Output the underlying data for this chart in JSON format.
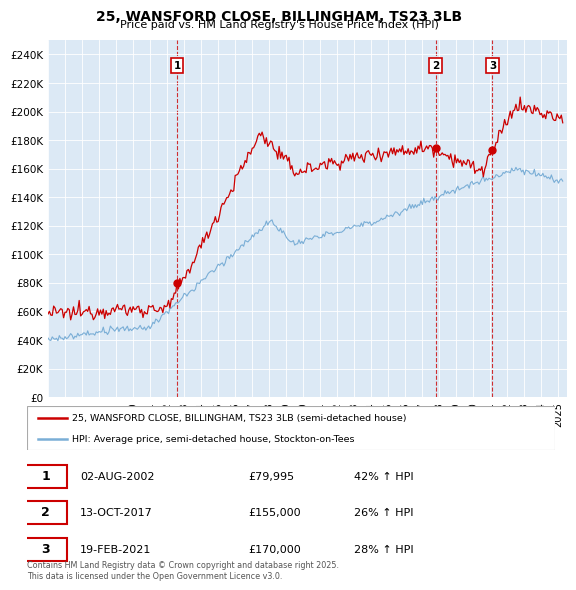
{
  "title_line1": "25, WANSFORD CLOSE, BILLINGHAM, TS23 3LB",
  "title_line2": "Price paid vs. HM Land Registry's House Price Index (HPI)",
  "sale_color": "#cc0000",
  "hpi_color": "#7aaed6",
  "background_color": "#ffffff",
  "plot_bg_color": "#dce9f5",
  "grid_color": "#ffffff",
  "sale_label": "25, WANSFORD CLOSE, BILLINGHAM, TS23 3LB (semi-detached house)",
  "hpi_label": "HPI: Average price, semi-detached house, Stockton-on-Tees",
  "xlim_start": 1995.0,
  "xlim_end": 2025.5,
  "ylim_min": 0,
  "ylim_max": 250000,
  "yticks": [
    0,
    20000,
    40000,
    60000,
    80000,
    100000,
    120000,
    140000,
    160000,
    180000,
    200000,
    220000,
    240000
  ],
  "ytick_labels": [
    "£0",
    "£20K",
    "£40K",
    "£60K",
    "£80K",
    "£100K",
    "£120K",
    "£140K",
    "£160K",
    "£180K",
    "£200K",
    "£220K",
    "£240K"
  ],
  "xticks": [
    1995,
    1996,
    1997,
    1998,
    1999,
    2000,
    2001,
    2002,
    2003,
    2004,
    2005,
    2006,
    2007,
    2008,
    2009,
    2010,
    2011,
    2012,
    2013,
    2014,
    2015,
    2016,
    2017,
    2018,
    2019,
    2020,
    2021,
    2022,
    2023,
    2024,
    2025
  ],
  "transactions": [
    {
      "num": 1,
      "date_str": "02-AUG-2002",
      "date_x": 2002.58,
      "price": 79995,
      "price_str": "£79,995",
      "pct": "42%",
      "dot_y": 79995
    },
    {
      "num": 2,
      "date_str": "13-OCT-2017",
      "date_x": 2017.78,
      "price": 155000,
      "price_str": "£155,000",
      "pct": "26%",
      "dot_y": 155000
    },
    {
      "num": 3,
      "date_str": "19-FEB-2021",
      "date_x": 2021.12,
      "price": 170000,
      "price_str": "£170,000",
      "pct": "28%",
      "dot_y": 170000
    }
  ],
  "footer_text": "Contains HM Land Registry data © Crown copyright and database right 2025.\nThis data is licensed under the Open Government Licence v3.0."
}
